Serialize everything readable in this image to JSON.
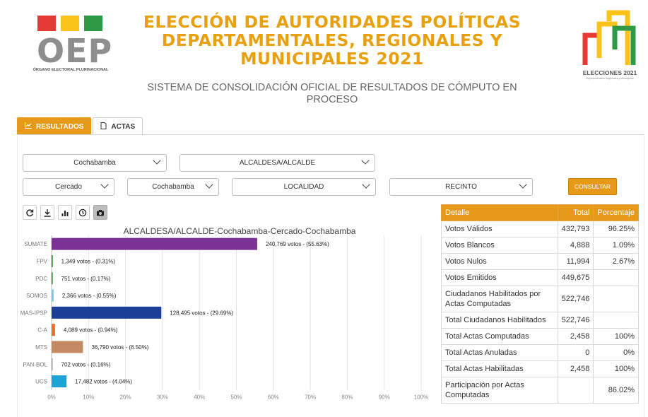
{
  "header": {
    "oep_letters": "OEP",
    "oep_subtitle": "ÓRGANO ELECTORAL PLURINACIONAL",
    "title_lines": [
      "ELECCIÓN DE AUTORIDADES POLÍTICAS",
      "DEPARTAMENTALES, REGIONALES Y",
      "MUNICIPALES 2021"
    ],
    "subtitle_lines": [
      "SISTEMA DE CONSOLIDACIÓN OFICIAL DE RESULTADOS DE CÓMPUTO EN",
      "PROCESO"
    ],
    "elecciones_name": "ELECCIONES 2021",
    "elecciones_tagline": "Departamentales Regionales y Municipales",
    "colors": {
      "title": "#e8a00e",
      "red": "#e53935",
      "yellow": "#f9c31a",
      "green": "#2e9a45"
    }
  },
  "tabs": [
    {
      "label": "RESULTADOS",
      "icon": "line-chart-icon",
      "active": true
    },
    {
      "label": "ACTAS",
      "icon": "document-icon",
      "active": false
    }
  ],
  "filters": {
    "departamento": "Cochabamba",
    "cargo": "ALCALDESA/ALCALDE",
    "provincia": "Cercado",
    "municipio": "Cochabamba",
    "localidad": "LOCALIDAD",
    "recinto": "RECINTO",
    "consultar_label": "CONSULTAR"
  },
  "toolbar": [
    "refresh-icon",
    "download-icon",
    "bar-chart-icon",
    "clock-icon",
    "camera-icon"
  ],
  "chart_title": "ALCALDESA/ALCALDE-Cochabamba-Cercado-Cochabamba",
  "chart_data": {
    "type": "bar",
    "orientation": "horizontal",
    "categories": [
      "SUMATE",
      "FPV",
      "PDC",
      "SOMOS",
      "MAS-IPSP",
      "C-A",
      "MTS",
      "PAN-BOL",
      "UCS"
    ],
    "values": [
      55.63,
      0.31,
      0.17,
      0.55,
      29.69,
      0.94,
      8.5,
      0.16,
      4.04
    ],
    "data_labels": [
      "240,769 votos - (55.63%)",
      "1,349 votos - (0.31%)",
      "751 votos - (0.17%)",
      "2,366 votos - (0.55%)",
      "128,495 votos - (29.69%)",
      "4,089 votos - (0.94%)",
      "36,790 votos - (8.50%)",
      "702 votos - (0.16%)",
      "17,482 votos - (4.04%)"
    ],
    "colors": [
      "#7b3294",
      "#2e7d32",
      "#2e7d32",
      "#7ec8e3",
      "#1a3f94",
      "#ee6c2f",
      "#c48a62",
      "#9e9e9e",
      "#1fa3d6"
    ],
    "x_ticks": [
      "0%",
      "10%",
      "20%",
      "30%",
      "40%",
      "50%",
      "60%",
      "70%",
      "80%",
      "90%",
      "100%"
    ],
    "xlim": [
      0,
      100
    ],
    "grid": true
  },
  "table": {
    "headers": [
      "Detalle",
      "Total",
      "Porcentaje"
    ],
    "rows": [
      {
        "label": "Votos Válidos",
        "total": "432,793",
        "pct": "96.25%"
      },
      {
        "label": "Votos Blancos",
        "total": "4,888",
        "pct": "1.09%"
      },
      {
        "label": "Votos Nulos",
        "total": "11,994",
        "pct": "2.67%"
      },
      {
        "label": "Votos Emitidos",
        "total": "449,675",
        "pct": ""
      },
      {
        "label": "Ciudadanos Habilitados por Actas Computadas",
        "total": "522,746",
        "pct": ""
      },
      {
        "label": "Total Ciudadanos Habilitados",
        "total": "522,746",
        "pct": ""
      },
      {
        "label": "Total Actas Computadas",
        "total": "2,458",
        "pct": "100%"
      },
      {
        "label": "Total Actas Anuladas",
        "total": "0",
        "pct": "0%"
      },
      {
        "label": "Total Actas Habilitadas",
        "total": "2,458",
        "pct": "100%"
      },
      {
        "label": "Participación por Actas Computadas",
        "total": "",
        "pct": "86.02%"
      }
    ]
  }
}
